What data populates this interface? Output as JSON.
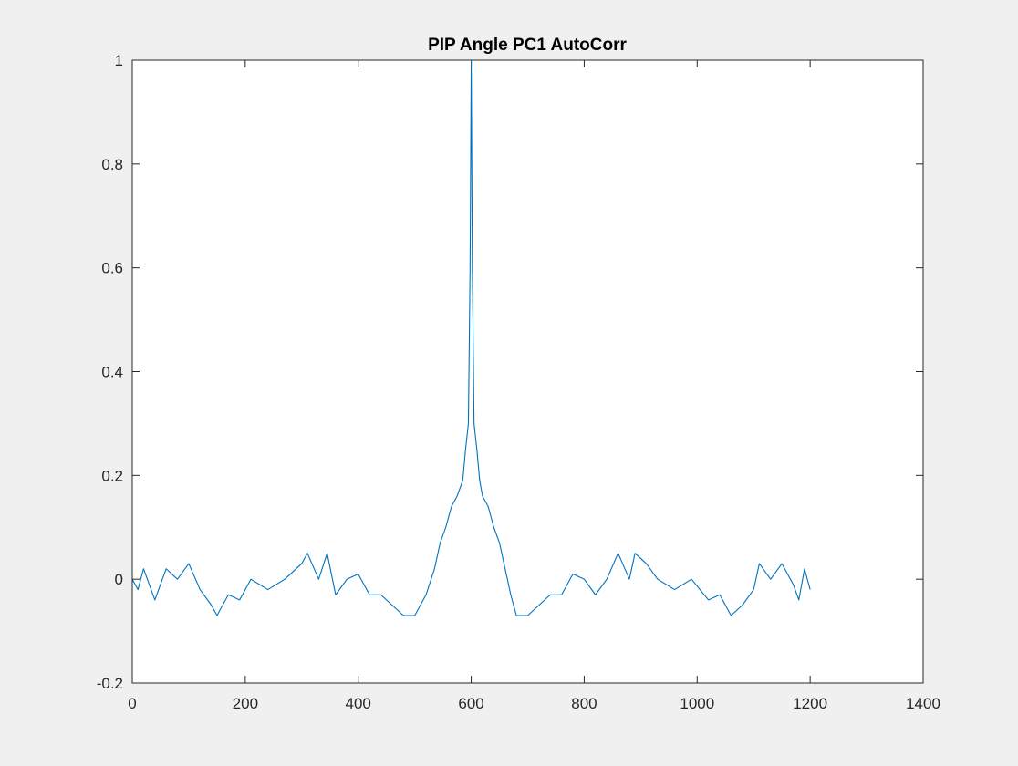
{
  "chart_data": {
    "type": "line",
    "title": "PIP Angle PC1 AutoCorr",
    "xlabel": "",
    "ylabel": "",
    "xlim": [
      0,
      1400
    ],
    "ylim": [
      -0.2,
      1
    ],
    "xticks": [
      0,
      200,
      400,
      600,
      800,
      1000,
      1200,
      1400
    ],
    "xtick_labels": [
      "0",
      "200",
      "400",
      "600",
      "800",
      "1000",
      "1200",
      "1400"
    ],
    "yticks": [
      -0.2,
      0,
      0.2,
      0.4,
      0.6,
      0.8,
      1
    ],
    "ytick_labels": [
      "-0.2",
      "0",
      "0.2",
      "0.4",
      "0.6",
      "0.8",
      "1"
    ],
    "grid": false,
    "legend": "none",
    "line_color": "#0072BD",
    "series": [
      {
        "x": [
          0,
          10,
          20,
          30,
          40,
          60,
          80,
          100,
          120,
          140,
          150,
          170,
          190,
          210,
          240,
          270,
          300,
          310,
          330,
          345,
          360,
          380,
          400,
          420,
          440,
          460,
          480,
          500,
          520,
          535,
          545,
          555,
          565,
          575,
          585,
          590,
          595,
          598,
          600,
          602,
          605,
          610,
          615,
          620,
          630,
          640,
          650,
          660,
          670,
          680,
          700,
          720,
          740,
          760,
          780,
          800,
          820,
          840,
          860,
          880,
          890,
          910,
          930,
          960,
          990,
          1020,
          1040,
          1060,
          1080,
          1100,
          1110,
          1130,
          1150,
          1170,
          1180,
          1190,
          1200
        ],
        "y": [
          0.0,
          -0.02,
          0.02,
          -0.01,
          -0.04,
          0.02,
          0.0,
          0.03,
          -0.02,
          -0.05,
          -0.07,
          -0.03,
          -0.04,
          0.0,
          -0.02,
          0.0,
          0.03,
          0.05,
          0.0,
          0.05,
          -0.03,
          0.0,
          0.01,
          -0.03,
          -0.03,
          -0.05,
          -0.07,
          -0.07,
          -0.03,
          0.02,
          0.07,
          0.1,
          0.14,
          0.16,
          0.19,
          0.25,
          0.3,
          0.6,
          1.0,
          0.6,
          0.3,
          0.25,
          0.19,
          0.16,
          0.14,
          0.1,
          0.07,
          0.02,
          -0.03,
          -0.07,
          -0.07,
          -0.05,
          -0.03,
          -0.03,
          0.01,
          0.0,
          -0.03,
          0.0,
          0.05,
          0.0,
          0.05,
          0.03,
          0.0,
          -0.02,
          0.0,
          -0.04,
          -0.03,
          -0.07,
          -0.05,
          -0.02,
          0.03,
          0.0,
          0.03,
          -0.01,
          -0.04,
          0.02,
          -0.02
        ]
      }
    ]
  }
}
